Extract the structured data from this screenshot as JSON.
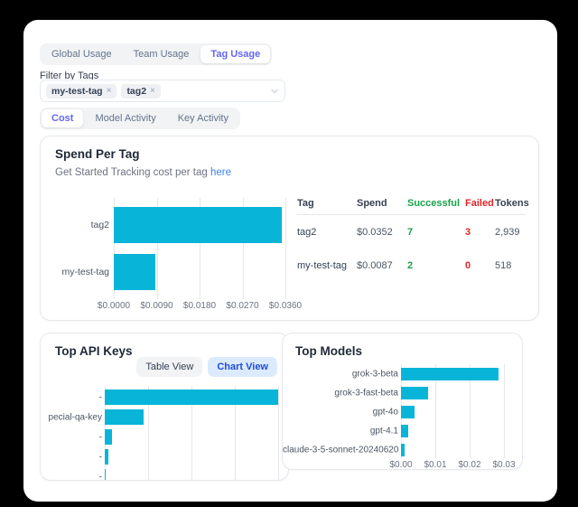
{
  "colors": {
    "page_bg": "#000000",
    "accent_indigo": "#6366f1",
    "bar_cyan": "#08b5d8",
    "success_green": "#16a34a",
    "failed_red": "#dc2626",
    "link_blue": "#3b82f6",
    "chart_view_bg": "#dbeafe",
    "chart_view_text": "#1d4ed8"
  },
  "main_tabs": {
    "items": [
      {
        "label": "Global Usage",
        "active": false
      },
      {
        "label": "Team Usage",
        "active": false
      },
      {
        "label": "Tag Usage",
        "active": true
      }
    ]
  },
  "filter": {
    "label": "Filter by Tags",
    "tags": [
      {
        "label": "my-test-tag"
      },
      {
        "label": "tag2"
      }
    ]
  },
  "view_tabs": {
    "items": [
      {
        "label": "Cost",
        "active": true
      },
      {
        "label": "Model Activity",
        "active": false
      },
      {
        "label": "Key Activity",
        "active": false
      }
    ]
  },
  "spend_card": {
    "title": "Spend Per Tag",
    "subtitle_prefix": "Get Started Tracking cost per tag",
    "subtitle_link": "here",
    "table": {
      "headers": [
        "Tag",
        "Spend",
        "Successful",
        "Failed",
        "Tokens"
      ],
      "header_colors": [
        "#374151",
        "#374151",
        "#16a34a",
        "#dc2626",
        "#374151"
      ],
      "cell_colors": [
        "#334155",
        "#4b5563",
        "#16a34a",
        "#dc2626",
        "#4b5563"
      ],
      "rows": [
        {
          "cells": [
            "tag2",
            "$0.0352",
            "7",
            "3",
            "2,939"
          ]
        },
        {
          "cells": [
            "my-test-tag",
            "$0.0087",
            "2",
            "0",
            "518"
          ]
        }
      ]
    }
  },
  "api_keys_card": {
    "title": "Top API Keys",
    "view_buttons": [
      {
        "label": "Table View",
        "active": false
      },
      {
        "label": "Chart View",
        "active": true
      }
    ]
  },
  "models_card": {
    "title": "Top Models"
  },
  "chart_data": [
    {
      "id": "spend-per-tag",
      "type": "bar",
      "orientation": "horizontal",
      "title": "Spend Per Tag",
      "categories": [
        "tag2",
        "my-test-tag"
      ],
      "values": [
        0.0352,
        0.0087
      ],
      "xlim": [
        0,
        0.036
      ],
      "xticks": [
        {
          "value": 0.0,
          "label": "$0.0000"
        },
        {
          "value": 0.009,
          "label": "$0.0090"
        },
        {
          "value": 0.018,
          "label": "$0.0180"
        },
        {
          "value": 0.027,
          "label": "$0.0270"
        },
        {
          "value": 0.036,
          "label": "$0.0360"
        }
      ],
      "bar_color": "#08b5d8",
      "grid": true,
      "legend": "none"
    },
    {
      "id": "top-api-keys",
      "type": "bar",
      "orientation": "horizontal",
      "title": "Top API Keys",
      "categories": [
        "-",
        "pecial-qa-key",
        "-",
        "-",
        "-"
      ],
      "values": [
        0.0352,
        0.0079,
        0.0015,
        0.0007,
        0.0001
      ],
      "xlim": [
        0,
        0.0352
      ],
      "xticks": [],
      "bar_color": "#08b5d8",
      "grid": true,
      "legend": "none",
      "note": "x-axis clipped by card bottom edge"
    },
    {
      "id": "top-models",
      "type": "bar",
      "orientation": "horizontal",
      "title": "Top Models",
      "categories": [
        "grok-3-beta",
        "grok-3-fast-beta",
        "gpt-4o",
        "gpt-4.1",
        "claude-3-5-sonnet-20240620"
      ],
      "values": [
        0.0285,
        0.0079,
        0.004,
        0.002,
        0.001
      ],
      "xlim": [
        0,
        0.03
      ],
      "xticks": [
        {
          "value": 0.0,
          "label": "$0.00"
        },
        {
          "value": 0.01,
          "label": "$0.01"
        },
        {
          "value": 0.02,
          "label": "$0.02"
        },
        {
          "value": 0.03,
          "label": "$0.03"
        }
      ],
      "bar_color": "#08b5d8",
      "grid": true,
      "legend": "none"
    }
  ]
}
